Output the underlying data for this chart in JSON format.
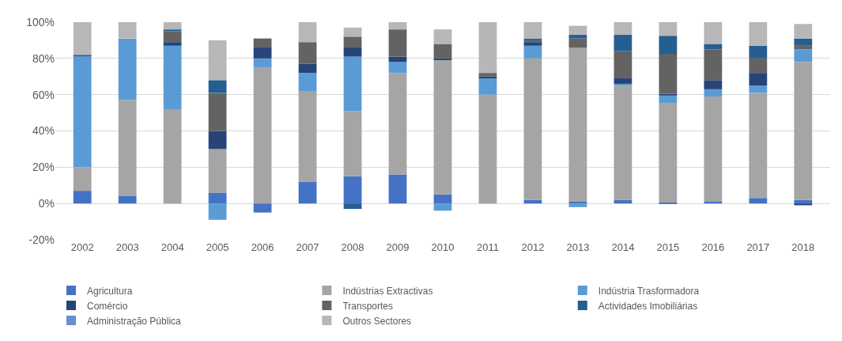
{
  "chart_data": {
    "type": "bar",
    "stacked": true,
    "categories": [
      "2002",
      "2003",
      "2004",
      "2005",
      "2006",
      "2007",
      "2008",
      "2009",
      "2010",
      "2011",
      "2012",
      "2013",
      "2014",
      "2015",
      "2016",
      "2017",
      "2018"
    ],
    "series": [
      {
        "name": "Agricultura",
        "color": "#4472c4",
        "values": [
          7,
          4,
          null,
          6,
          -5,
          12,
          15,
          16,
          5,
          null,
          2,
          1,
          2,
          0.5,
          1,
          3,
          2
        ]
      },
      {
        "name": "Indústrias Extractivas",
        "color": "#a5a5a5",
        "values": [
          13,
          53,
          52,
          24,
          75,
          50,
          36,
          56,
          74,
          60,
          78,
          85,
          63,
          55,
          58,
          58,
          76
        ]
      },
      {
        "name": "Indústria Trasformadora",
        "color": "#5b9bd5",
        "values": [
          61,
          34,
          35,
          -9,
          5,
          10,
          30,
          6,
          -4,
          9,
          7,
          -2,
          1,
          4,
          4,
          4,
          7
        ]
      },
      {
        "name": "Comércio",
        "color": "#264478",
        "values": [
          null,
          null,
          2,
          10,
          6,
          5,
          5,
          3,
          1,
          1,
          2,
          null,
          3,
          1,
          5,
          7,
          -1
        ]
      },
      {
        "name": "Transportes",
        "color": "#636363",
        "values": [
          null,
          null,
          6,
          21,
          5,
          12,
          6,
          15,
          8,
          2,
          1,
          5,
          15,
          22,
          17,
          8,
          2
        ]
      },
      {
        "name": "Actividades Imobiliárias",
        "color": "#255e91",
        "values": [
          1,
          null,
          1,
          7,
          null,
          null,
          -3,
          null,
          null,
          null,
          1,
          2,
          9,
          10,
          3,
          7,
          4
        ]
      },
      {
        "name": "Administração Pública",
        "color": "#698ed0",
        "values": [
          null,
          null,
          null,
          null,
          null,
          null,
          null,
          null,
          null,
          null,
          null,
          null,
          null,
          null,
          null,
          null,
          null
        ]
      },
      {
        "name": "Outros Sectores",
        "color": "#b7b7b7",
        "values": [
          18,
          9,
          4,
          22,
          null,
          11,
          5,
          4,
          8,
          28,
          9,
          5,
          7,
          7.5,
          12,
          13,
          8
        ]
      }
    ],
    "ylim": [
      -20,
      100
    ],
    "yticks": [
      {
        "value": -20,
        "label": "-20%"
      },
      {
        "value": 0,
        "label": "0%"
      },
      {
        "value": 20,
        "label": "20%"
      },
      {
        "value": 40,
        "label": "40%"
      },
      {
        "value": 60,
        "label": "60%"
      },
      {
        "value": 80,
        "label": "80%"
      },
      {
        "value": 100,
        "label": "100%"
      }
    ],
    "grid": "y",
    "legend": "bottom"
  }
}
